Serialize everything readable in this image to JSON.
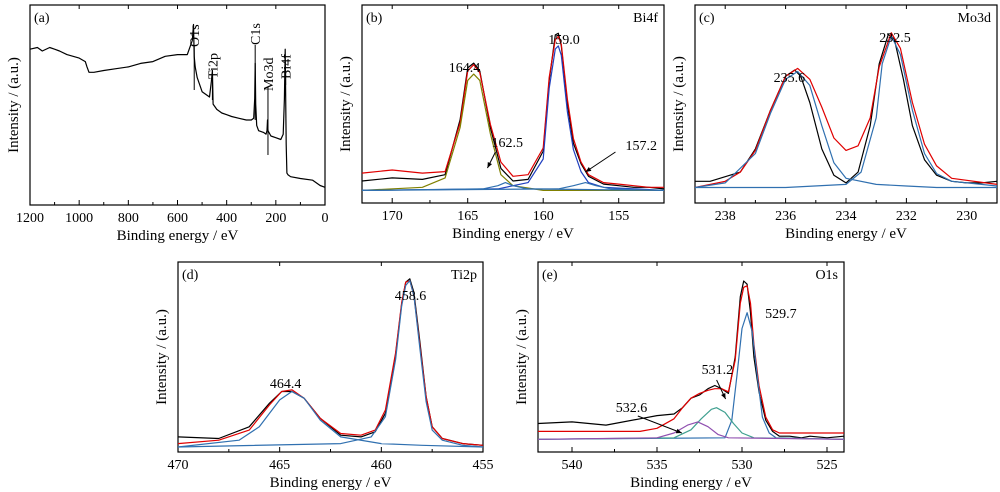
{
  "chart_data": [
    {
      "panel": "(a)",
      "type": "line",
      "xlabel": "Binding energy / eV",
      "ylabel": "Intensity / (a.u.)",
      "xlim": [
        1200,
        0
      ],
      "xticks": [
        1200,
        1000,
        800,
        600,
        400,
        200,
        0
      ],
      "peak_labels": [
        "O1s",
        "Ti2p",
        "C1s",
        "Mo3d",
        "Bi4f"
      ],
      "series": [
        {
          "color": "#000000",
          "x": [
            1200,
            1170,
            1150,
            1120,
            1100,
            1080,
            1050,
            1000,
            975,
            968,
            960,
            940,
            900,
            850,
            800,
            750,
            700,
            650,
            600,
            560,
            540,
            535,
            532,
            528,
            520,
            500,
            470,
            462,
            458,
            455,
            440,
            420,
            400,
            380,
            350,
            320,
            300,
            290,
            286,
            284,
            282,
            278,
            270,
            250,
            240,
            236,
            234,
            232,
            220,
            200,
            180,
            170,
            165,
            162,
            160,
            158,
            155,
            150,
            140,
            100,
            50,
            20,
            0
          ],
          "y": [
            0.8,
            0.81,
            0.79,
            0.81,
            0.8,
            0.79,
            0.77,
            0.75,
            0.73,
            0.7,
            0.67,
            0.67,
            0.68,
            0.69,
            0.7,
            0.72,
            0.73,
            0.76,
            0.77,
            0.77,
            0.85,
            0.94,
            0.76,
            0.7,
            0.64,
            0.56,
            0.53,
            0.62,
            0.68,
            0.49,
            0.46,
            0.44,
            0.43,
            0.42,
            0.41,
            0.4,
            0.4,
            0.41,
            0.52,
            0.72,
            0.49,
            0.37,
            0.34,
            0.33,
            0.32,
            0.34,
            0.4,
            0.34,
            0.31,
            0.3,
            0.29,
            0.32,
            0.52,
            0.8,
            0.52,
            0.26,
            0.1,
            0.09,
            0.08,
            0.07,
            0.06,
            0.03,
            0.02
          ]
        }
      ]
    },
    {
      "panel": "(b)",
      "title": "Bi4f",
      "type": "line",
      "xlabel": "Binding energy / eV",
      "ylabel": "Intensity / (a.u.)",
      "xlim": [
        172,
        152
      ],
      "xticks": [
        170,
        165,
        160,
        155
      ],
      "peak_labels": [
        {
          "text": "164.4",
          "x": 164.4
        },
        {
          "text": "159.0",
          "x": 159.0
        },
        {
          "text": "162.5",
          "x": 162.5
        },
        {
          "text": "157.2",
          "x": 157.2
        }
      ],
      "series": [
        {
          "color": "#000000",
          "x": [
            172,
            170,
            168,
            166.5,
            165.5,
            165,
            164.6,
            164.2,
            163.5,
            162.8,
            162,
            161,
            160,
            159.6,
            159.2,
            159.0,
            158.8,
            158.4,
            158,
            157.5,
            157,
            156,
            155,
            154,
            153,
            152
          ],
          "y": [
            0.06,
            0.08,
            0.07,
            0.1,
            0.45,
            0.78,
            0.81,
            0.76,
            0.4,
            0.14,
            0.06,
            0.07,
            0.25,
            0.7,
            0.99,
            1.0,
            0.92,
            0.55,
            0.3,
            0.17,
            0.09,
            0.04,
            0.03,
            0.02,
            0.02,
            0.01
          ]
        },
        {
          "color": "#e00000",
          "x": [
            172,
            170,
            168,
            166.5,
            165.5,
            165,
            164.6,
            164.2,
            163.5,
            162.8,
            162,
            161,
            160,
            159.6,
            159.2,
            159.0,
            158.8,
            158.4,
            158,
            157.5,
            157,
            156,
            155,
            154,
            153,
            152
          ],
          "y": [
            0.11,
            0.13,
            0.11,
            0.12,
            0.43,
            0.76,
            0.8,
            0.75,
            0.42,
            0.18,
            0.09,
            0.1,
            0.27,
            0.72,
            0.96,
            0.98,
            0.93,
            0.58,
            0.33,
            0.18,
            0.1,
            0.05,
            0.04,
            0.03,
            0.02,
            0.02
          ]
        },
        {
          "color": "#808000",
          "x": [
            172,
            168,
            166.5,
            165.5,
            165,
            164.6,
            164.2,
            163.5,
            162.8,
            162,
            160,
            152
          ],
          "y": [
            0.0,
            0.02,
            0.08,
            0.4,
            0.7,
            0.74,
            0.7,
            0.36,
            0.1,
            0.03,
            0.0,
            0.0
          ]
        },
        {
          "color": "#2040c0",
          "x": [
            172,
            163,
            161,
            160,
            159.6,
            159.2,
            159.0,
            158.8,
            158.4,
            158,
            157.5,
            157,
            156,
            152
          ],
          "y": [
            0.0,
            0.01,
            0.05,
            0.2,
            0.65,
            0.9,
            0.92,
            0.86,
            0.5,
            0.26,
            0.12,
            0.05,
            0.02,
            0.0
          ]
        },
        {
          "color": "#3070b0",
          "x": [
            172,
            164,
            163,
            162.5,
            162,
            161,
            152
          ],
          "y": [
            0.0,
            0.01,
            0.03,
            0.05,
            0.03,
            0.01,
            0.0
          ]
        },
        {
          "color": "#3070b0",
          "x": [
            172,
            159,
            158,
            157.2,
            156.5,
            155.5,
            152
          ],
          "y": [
            0.0,
            0.01,
            0.03,
            0.05,
            0.03,
            0.01,
            0.0
          ]
        }
      ]
    },
    {
      "panel": "(c)",
      "title": "Mo3d",
      "type": "line",
      "xlabel": "Binding energy / eV",
      "ylabel": "Intensity / (a.u.)",
      "xlim": [
        239,
        229
      ],
      "xticks": [
        238,
        236,
        234,
        232,
        230
      ],
      "peak_labels": [
        {
          "text": "235.6",
          "x": 235.6
        },
        {
          "text": "232.5",
          "x": 232.5
        }
      ],
      "series": [
        {
          "color": "#000000",
          "x": [
            239,
            238.5,
            237.5,
            237,
            236.5,
            236,
            235.7,
            235.5,
            235.2,
            234.8,
            234.4,
            234,
            233.6,
            233.2,
            232.9,
            232.6,
            232.4,
            232.1,
            231.8,
            231.4,
            231,
            230.5,
            230,
            229.5,
            229
          ],
          "y": [
            0.04,
            0.04,
            0.1,
            0.25,
            0.5,
            0.72,
            0.76,
            0.72,
            0.55,
            0.25,
            0.08,
            0.03,
            0.1,
            0.4,
            0.8,
            0.99,
            0.96,
            0.7,
            0.4,
            0.18,
            0.08,
            0.04,
            0.03,
            0.03,
            0.04
          ]
        },
        {
          "color": "#e00000",
          "x": [
            239,
            238,
            237.5,
            237,
            236.5,
            236,
            235.6,
            235.2,
            234.8,
            234.4,
            234,
            233.6,
            233.2,
            232.9,
            232.5,
            232.2,
            231.8,
            231.4,
            231,
            230.5,
            229
          ],
          "y": [
            0.0,
            0.04,
            0.1,
            0.24,
            0.5,
            0.72,
            0.77,
            0.7,
            0.52,
            0.32,
            0.24,
            0.27,
            0.45,
            0.78,
            1.0,
            0.9,
            0.55,
            0.28,
            0.14,
            0.06,
            0.02
          ]
        },
        {
          "color": "#3070b0",
          "x": [
            239,
            238,
            237,
            236.5,
            236,
            235.6,
            235.2,
            234.8,
            234.4,
            234,
            233,
            232,
            231,
            229
          ],
          "y": [
            0.0,
            0.03,
            0.22,
            0.48,
            0.7,
            0.75,
            0.66,
            0.4,
            0.16,
            0.06,
            0.02,
            0.01,
            0.0,
            0.0
          ]
        },
        {
          "color": "#3070b0",
          "x": [
            239,
            236,
            234,
            233.5,
            233,
            232.8,
            232.5,
            232.2,
            231.8,
            231.4,
            231,
            230.5,
            229
          ],
          "y": [
            0.0,
            0.0,
            0.02,
            0.1,
            0.45,
            0.8,
            0.98,
            0.86,
            0.5,
            0.22,
            0.09,
            0.04,
            0.01
          ]
        }
      ]
    },
    {
      "panel": "(d)",
      "title": "Ti2p",
      "type": "line",
      "xlabel": "Binding energy / eV",
      "ylabel": "Intensity / (a.u.)",
      "xlim": [
        470,
        455
      ],
      "xticks": [
        470,
        465,
        460,
        455
      ],
      "peak_labels": [
        {
          "text": "464.4",
          "x": 464.4
        },
        {
          "text": "458.6",
          "x": 458.6
        }
      ],
      "series": [
        {
          "color": "#000000",
          "x": [
            470,
            468,
            466.5,
            465.5,
            464.9,
            464.4,
            463.8,
            463,
            462,
            461,
            460.3,
            459.8,
            459.3,
            459.0,
            458.8,
            458.6,
            458.4,
            458.1,
            457.8,
            457.5,
            457,
            456,
            455
          ],
          "y": [
            0.06,
            0.05,
            0.12,
            0.26,
            0.33,
            0.33,
            0.29,
            0.17,
            0.07,
            0.06,
            0.09,
            0.2,
            0.55,
            0.85,
            0.98,
            1.0,
            0.92,
            0.62,
            0.3,
            0.12,
            0.05,
            0.02,
            0.01
          ]
        },
        {
          "color": "#e00000",
          "x": [
            470,
            468,
            466.5,
            465.5,
            464.9,
            464.4,
            463.8,
            463,
            462,
            461,
            460.3,
            459.8,
            459.3,
            459.0,
            458.8,
            458.6,
            458.4,
            458.1,
            457.8,
            457.5,
            457,
            456,
            455
          ],
          "y": [
            0.02,
            0.04,
            0.1,
            0.25,
            0.33,
            0.34,
            0.29,
            0.17,
            0.08,
            0.07,
            0.1,
            0.22,
            0.56,
            0.86,
            0.98,
            0.99,
            0.9,
            0.6,
            0.3,
            0.12,
            0.05,
            0.02,
            0.01
          ]
        },
        {
          "color": "#3070b0",
          "x": [
            470,
            467,
            466,
            465,
            464.4,
            463.8,
            463,
            462,
            460,
            458,
            455
          ],
          "y": [
            0.0,
            0.04,
            0.12,
            0.28,
            0.33,
            0.29,
            0.16,
            0.06,
            0.02,
            0.01,
            0.0
          ]
        },
        {
          "color": "#3070b0",
          "x": [
            470,
            462,
            460.5,
            459.8,
            459.3,
            459.0,
            458.8,
            458.6,
            458.4,
            458.1,
            457.8,
            457.5,
            457,
            456,
            455
          ],
          "y": [
            0.0,
            0.02,
            0.06,
            0.18,
            0.52,
            0.84,
            0.96,
            0.99,
            0.9,
            0.58,
            0.27,
            0.1,
            0.04,
            0.01,
            0.0
          ]
        }
      ]
    },
    {
      "panel": "(e)",
      "title": "O1s",
      "type": "line",
      "xlabel": "Binding energy / eV",
      "ylabel": "Intensity / (a.u.)",
      "xlim": [
        542,
        524
      ],
      "xticks": [
        540,
        535,
        530,
        525
      ],
      "peak_labels": [
        {
          "text": "529.7",
          "x": 529.7
        },
        {
          "text": "531.2",
          "x": 531.2
        },
        {
          "text": "532.6",
          "x": 532.6
        }
      ],
      "series": [
        {
          "color": "#000000",
          "x": [
            542,
            540,
            538,
            536,
            535,
            534,
            533.5,
            533,
            532.5,
            532,
            531.6,
            531.2,
            530.8,
            530.4,
            530.1,
            529.9,
            529.7,
            529.5,
            529.3,
            529,
            528.6,
            528.2,
            527.8,
            527.2,
            526.5,
            526,
            525,
            524
          ],
          "y": [
            0.1,
            0.11,
            0.09,
            0.13,
            0.15,
            0.16,
            0.2,
            0.26,
            0.28,
            0.32,
            0.34,
            0.32,
            0.29,
            0.52,
            0.9,
            1.0,
            0.98,
            0.8,
            0.52,
            0.3,
            0.12,
            0.05,
            0.02,
            0.02,
            0.01,
            0.02,
            0.01,
            0.02
          ]
        },
        {
          "color": "#e00000",
          "x": [
            542,
            536,
            535,
            534,
            533.5,
            533,
            532.5,
            532,
            531.6,
            531.2,
            530.8,
            530.4,
            530.1,
            529.9,
            529.7,
            529.5,
            529.3,
            529,
            528.6,
            528.2,
            527.8,
            527,
            524
          ],
          "y": [
            0.05,
            0.05,
            0.07,
            0.13,
            0.2,
            0.26,
            0.29,
            0.31,
            0.32,
            0.32,
            0.3,
            0.5,
            0.86,
            0.96,
            0.97,
            0.86,
            0.6,
            0.34,
            0.14,
            0.06,
            0.04,
            0.04,
            0.04
          ]
        },
        {
          "color": "#3070b0",
          "x": [
            542,
            531,
            530.6,
            530.3,
            530.0,
            529.7,
            529.4,
            529.1,
            528.8,
            528.4,
            528,
            524
          ],
          "y": [
            0.0,
            0.01,
            0.12,
            0.4,
            0.7,
            0.8,
            0.68,
            0.4,
            0.14,
            0.04,
            0.01,
            0.0
          ]
        },
        {
          "color": "#40a090",
          "x": [
            542,
            534,
            533,
            532.4,
            531.8,
            531.5,
            531.0,
            530.5,
            530.0,
            529.3,
            524
          ],
          "y": [
            0.0,
            0.01,
            0.06,
            0.13,
            0.19,
            0.2,
            0.17,
            0.1,
            0.04,
            0.01,
            0.0
          ]
        },
        {
          "color": "#9050b0",
          "x": [
            542,
            535,
            534,
            533.2,
            532.6,
            532.0,
            531.4,
            530.8,
            524
          ],
          "y": [
            0.0,
            0.01,
            0.04,
            0.09,
            0.11,
            0.08,
            0.03,
            0.01,
            0.0
          ]
        }
      ]
    }
  ]
}
